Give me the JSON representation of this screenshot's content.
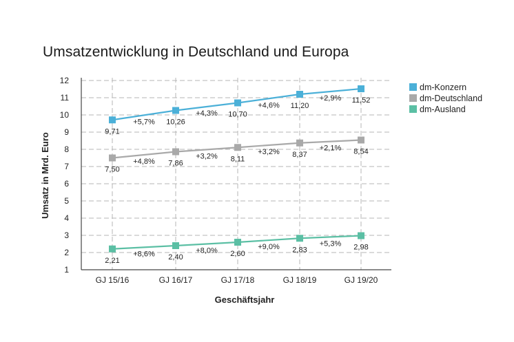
{
  "chart_data": {
    "type": "line",
    "title": "Umsatzentwicklung in Deutschland und Europa",
    "xlabel": "Geschäftsjahr",
    "ylabel": "Umsatz in Mrd. Euro",
    "ylim": [
      1,
      12
    ],
    "yticks": [
      "1",
      "2",
      "3",
      "4",
      "5",
      "6",
      "7",
      "8",
      "9",
      "10",
      "11",
      "12"
    ],
    "categories": [
      "GJ 15/16",
      "GJ 16/17",
      "GJ 17/18",
      "GJ 18/19",
      "GJ 19/20"
    ],
    "grid": true,
    "legend_position": "top-right",
    "series": [
      {
        "name": "dm-Konzern",
        "color": "#4bb0d8",
        "values": [
          9.71,
          10.26,
          10.7,
          11.2,
          11.52
        ],
        "labels": [
          "9,71",
          "10,26",
          "10,70",
          "11,20",
          "11,52"
        ],
        "growth": [
          "+5,7%",
          "+4,3%",
          "+4,6%",
          "+2,9%"
        ]
      },
      {
        "name": "dm-Deutschland",
        "color": "#a9a9a9",
        "values": [
          7.5,
          7.86,
          8.11,
          8.37,
          8.54
        ],
        "labels": [
          "7,50",
          "7,86",
          "8,11",
          "8,37",
          "8,54"
        ],
        "growth": [
          "+4,8%",
          "+3,2%",
          "+3,2%",
          "+2,1%"
        ]
      },
      {
        "name": "dm-Ausland",
        "color": "#5bbfa4",
        "values": [
          2.21,
          2.4,
          2.6,
          2.83,
          2.98
        ],
        "labels": [
          "2,21",
          "2,40",
          "2,60",
          "2,83",
          "2,98"
        ],
        "growth": [
          "+8,6%",
          "+8,0%",
          "+9,0%",
          "+5,3%"
        ]
      }
    ]
  }
}
